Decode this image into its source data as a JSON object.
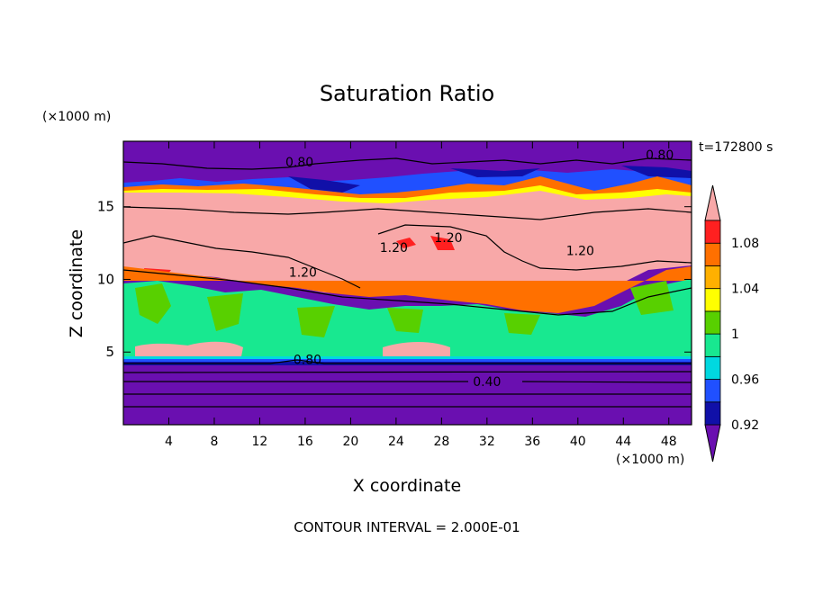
{
  "chart_data": {
    "type": "heatmap",
    "title": "Saturation Ratio",
    "xlabel": "X coordinate",
    "ylabel": "Z coordinate",
    "x_unit": "(×1000 m)",
    "y_unit": "(×1000 m)",
    "time_label": "t=172800 s",
    "footer": "CONTOUR INTERVAL = 2.000E-01",
    "xlim": [
      0,
      50
    ],
    "ylim": [
      0,
      19.5
    ],
    "x_ticks": [
      4,
      8,
      12,
      16,
      20,
      24,
      28,
      32,
      36,
      40,
      44,
      48
    ],
    "y_ticks": [
      5,
      10,
      15
    ],
    "colorbar": {
      "levels": [
        0.92,
        0.94,
        0.96,
        0.98,
        1.0,
        1.02,
        1.04,
        1.06,
        1.08,
        1.1
      ],
      "labels": [
        "0.92",
        "0.96",
        "1",
        "1.04",
        "1.08"
      ],
      "colors": [
        "#6a0fb0",
        "#1010a8",
        "#2050ff",
        "#00d8e0",
        "#18e890",
        "#58d000",
        "#ffff00",
        "#ffb000",
        "#ff7000",
        "#ff2020",
        "#f8a8a8"
      ]
    },
    "contour_labels": [
      {
        "text": "0.80",
        "x": 15.5,
        "y": 17.9
      },
      {
        "text": "0.80",
        "x": 47.2,
        "y": 18.4
      },
      {
        "text": "1.20",
        "x": 23.8,
        "y": 12.0
      },
      {
        "text": "1.20",
        "x": 28.6,
        "y": 12.7
      },
      {
        "text": "1.20",
        "x": 40.2,
        "y": 11.8
      },
      {
        "text": "1.20",
        "x": 15.8,
        "y": 10.3
      },
      {
        "text": "0.80",
        "x": 16.2,
        "y": 4.3
      },
      {
        "text": "0.40",
        "x": 32.0,
        "y": 2.8
      }
    ]
  }
}
